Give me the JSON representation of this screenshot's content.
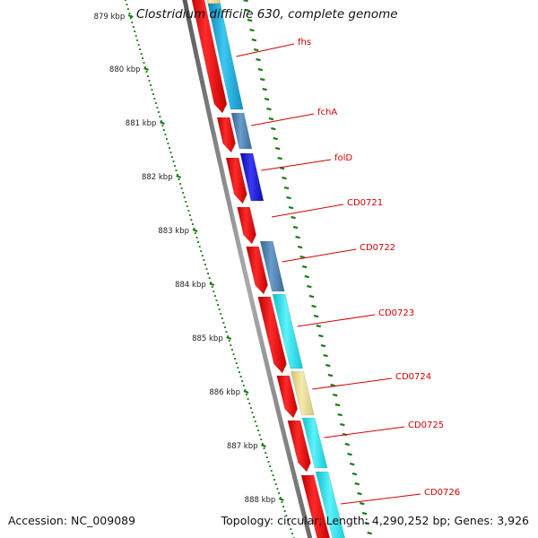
{
  "title": "Clostridium difficile 630, complete genome",
  "footer": {
    "accession": "Accession: NC_009089",
    "topology": "Topology: circular; Length: 4,290,252 bp; Genes: 3,926"
  },
  "ruler": {
    "labels": [
      "879 kbp",
      "880 kbp",
      "881 kbp",
      "882 kbp",
      "883 kbp",
      "884 kbp",
      "885 kbp",
      "886 kbp",
      "887 kbp",
      "888 kbp"
    ]
  },
  "colors": {
    "cds_red": "#ee0000",
    "teal": "#1aaedf",
    "cyan": "#19e2ee",
    "steel_blue": "#4a82b4",
    "blue": "#1a1adf",
    "khaki": "#e8d98a",
    "label_red": "#d40000",
    "tick_green": "#1a7d1a",
    "backbone": "#888888"
  },
  "genes": [
    {
      "label": "fhs",
      "color_name": "teal"
    },
    {
      "label": "fchA",
      "color_name": "steel_blue"
    },
    {
      "label": "folD",
      "color_name": "blue"
    },
    {
      "label": "CD0721",
      "color_name": "none"
    },
    {
      "label": "CD0722",
      "color_name": "steel_blue"
    },
    {
      "label": "CD0723",
      "color_name": "cyan"
    },
    {
      "label": "CD0724",
      "color_name": "khaki"
    },
    {
      "label": "CD0725",
      "color_name": "cyan"
    },
    {
      "label": "CD0726",
      "color_name": "cyan"
    }
  ]
}
